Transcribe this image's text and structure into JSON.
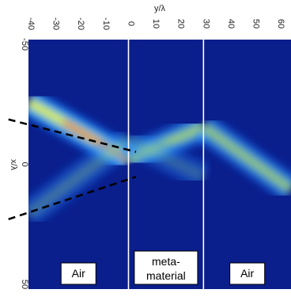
{
  "chart_data": {
    "type": "heatmap",
    "xlabel": "y/λ",
    "ylabel": "x/λ",
    "x_ticks": [
      "-40",
      "-30",
      "-20",
      "-10",
      "0",
      "10",
      "20",
      "30",
      "40",
      "50",
      "60"
    ],
    "x_range": [
      -40,
      65
    ],
    "y_ticks_labeled": [
      "-50",
      "0",
      "50"
    ],
    "y_range": [
      -50,
      50
    ],
    "colormap": "jet",
    "background_color": "#0a1e8c",
    "interfaces_y": [
      0,
      30
    ],
    "regions": [
      {
        "label": "Air",
        "y_range": [
          -40,
          0
        ]
      },
      {
        "label": [
          "meta-",
          "material"
        ],
        "y_range": [
          0,
          30
        ]
      },
      {
        "label": "Air",
        "y_range": [
          30,
          65
        ]
      }
    ],
    "beams": [
      {
        "from": [
          -40,
          -25
        ],
        "to": [
          0,
          -2
        ],
        "intensity": 0.9
      },
      {
        "from": [
          0,
          -2
        ],
        "to": [
          30,
          -15
        ],
        "intensity": 0.6
      },
      {
        "from": [
          30,
          -15
        ],
        "to": [
          65,
          10
        ],
        "intensity": 0.55
      },
      {
        "from": [
          -40,
          20
        ],
        "to": [
          0,
          -10
        ],
        "intensity": 0.2
      },
      {
        "from": [
          0,
          -10
        ],
        "to": [
          30,
          5
        ],
        "intensity": 0.15
      }
    ],
    "guide_lines": [
      {
        "from": [
          -48,
          -18
        ],
        "to": [
          3,
          -5
        ],
        "style": "dashed"
      },
      {
        "from": [
          -48,
          22
        ],
        "to": [
          3,
          5
        ],
        "style": "dashed"
      }
    ],
    "grid": false
  }
}
